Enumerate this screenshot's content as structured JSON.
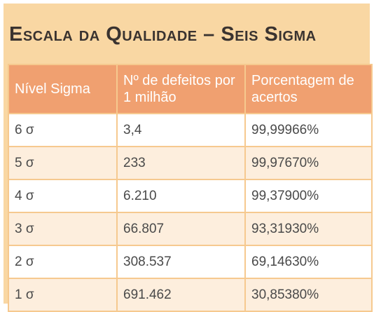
{
  "title": "Escala da Qualidade – Seis Sigma",
  "headers": [
    "Nível Sigma",
    "Nº de defeitos por 1 milhão",
    "Porcentagem de acertos"
  ],
  "rows": [
    [
      "6 σ",
      "3,4",
      "99,99966%"
    ],
    [
      "5 σ",
      "233",
      "99,97670%"
    ],
    [
      "4 σ",
      "6.210",
      "99,37900%"
    ],
    [
      "3 σ",
      "66.807",
      "93,31930%"
    ],
    [
      "2 σ",
      "308.537",
      "69,14630%"
    ],
    [
      "1 σ",
      "691.462",
      "30,85380%"
    ]
  ],
  "colors": {
    "background": "#f9d7a3",
    "header": "#f0a070",
    "header_text": "#ffffff",
    "row_alt": "#fdeedd",
    "border": "#f6c98f",
    "title_text": "#3a3330"
  }
}
